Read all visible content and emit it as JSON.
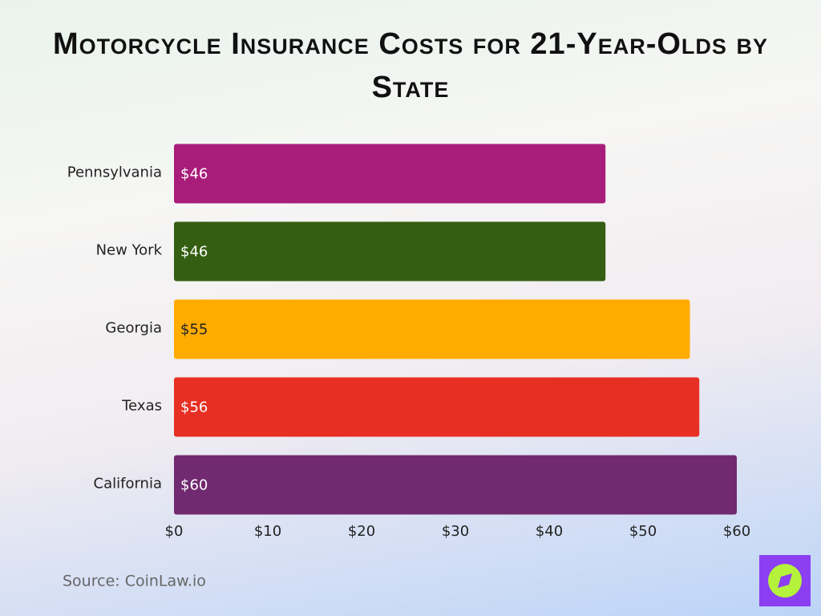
{
  "chart_data": {
    "type": "hbar",
    "title": "Motorcycle Insurance Costs for 21-Year-Olds by State",
    "categories": [
      "Pennsylvania",
      "New York",
      "Georgia",
      "Texas",
      "California"
    ],
    "values": [
      46,
      46,
      55,
      56,
      60
    ],
    "value_labels": [
      "$46",
      "$46",
      "$55",
      "$56",
      "$60"
    ],
    "colors": [
      "#a91d7a",
      "#345e11",
      "#ffab00",
      "#e82f23",
      "#712a6f"
    ],
    "xlim": [
      0,
      60
    ],
    "xticks": [
      {
        "value": 0,
        "label": "$0"
      },
      {
        "value": 10,
        "label": "$10"
      },
      {
        "value": 20,
        "label": "$20"
      },
      {
        "value": 30,
        "label": "$30"
      },
      {
        "value": 40,
        "label": "$40"
      },
      {
        "value": 50,
        "label": "$50"
      },
      {
        "value": 60,
        "label": "$60"
      }
    ],
    "grid": false,
    "source": "Source: CoinLaw.io"
  }
}
